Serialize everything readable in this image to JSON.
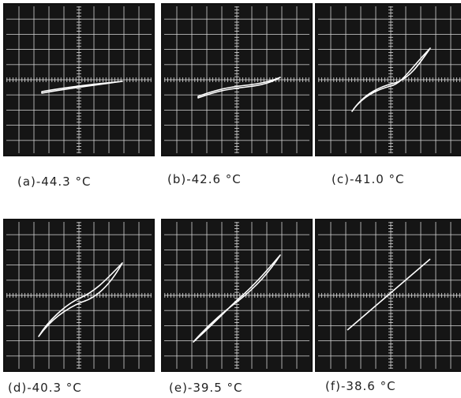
{
  "panels": [
    {
      "label": "(a)-44.3 °C"
    },
    {
      "label": "(b)-42.6 °C"
    },
    {
      "label": "(c)-41.0 °C"
    },
    {
      "label": "(d)-40.3 °C"
    },
    {
      "label": "(e)-39.5 °C"
    },
    {
      "label": "(f)-38.6 °C"
    }
  ]
}
